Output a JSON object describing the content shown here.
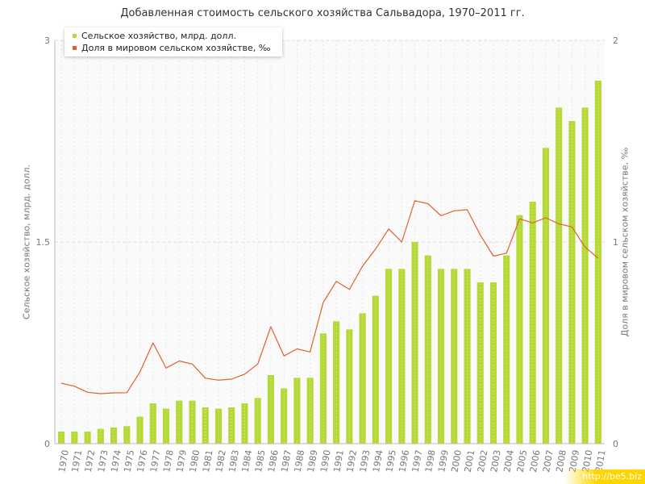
{
  "title": "Добавленная стоимость сельского хозяйства Сальвадора, 1970–2011 гг.",
  "watermark": "http://be5.biz",
  "chart_data": {
    "type": "bar",
    "title": "Добавленная стоимость сельского хозяйства Сальвадора, 1970–2011 гг.",
    "categories": [
      "1970",
      "1971",
      "1972",
      "1973",
      "1974",
      "1975",
      "1976",
      "1977",
      "1978",
      "1979",
      "1980",
      "1981",
      "1982",
      "1983",
      "1984",
      "1985",
      "1986",
      "1987",
      "1988",
      "1989",
      "1990",
      "1991",
      "1992",
      "1993",
      "1994",
      "1995",
      "1996",
      "1997",
      "1998",
      "1999",
      "2000",
      "2001",
      "2002",
      "2003",
      "2004",
      "2005",
      "2006",
      "2007",
      "2008",
      "2009",
      "2010",
      "2011"
    ],
    "series": [
      {
        "name": "Сельское хозяйство, млрд. долл.",
        "type": "bar",
        "axis": "left",
        "color": "#b5d936",
        "values": [
          0.09,
          0.09,
          0.09,
          0.11,
          0.12,
          0.13,
          0.2,
          0.3,
          0.26,
          0.32,
          0.32,
          0.27,
          0.26,
          0.27,
          0.3,
          0.34,
          0.51,
          0.41,
          0.49,
          0.49,
          0.82,
          0.91,
          0.85,
          0.97,
          1.1,
          1.3,
          1.3,
          1.5,
          1.4,
          1.3,
          1.3,
          1.3,
          1.2,
          1.2,
          1.4,
          1.7,
          1.8,
          2.2,
          2.5,
          2.4,
          2.5,
          2.7
        ]
      },
      {
        "name": "Доля в мировом сельском хозяйстве, ‰",
        "type": "line",
        "axis": "right",
        "color": "#e06030",
        "values": [
          0.3,
          0.285,
          0.255,
          0.248,
          0.252,
          0.253,
          0.355,
          0.5,
          0.375,
          0.41,
          0.395,
          0.325,
          0.315,
          0.32,
          0.345,
          0.395,
          0.58,
          0.435,
          0.47,
          0.455,
          0.7,
          0.805,
          0.765,
          0.88,
          0.965,
          1.065,
          1.0,
          1.205,
          1.19,
          1.13,
          1.155,
          1.16,
          1.035,
          0.93,
          0.945,
          1.115,
          1.095,
          1.12,
          1.09,
          1.075,
          0.975,
          0.92
        ]
      }
    ],
    "ylabel": "Сельское хозяйство, млрд. долл.",
    "ylabel_right": "Доля в мировом сельском хозяйстве, ‰",
    "ylim": [
      0,
      3
    ],
    "yticks": [
      "0",
      "1.5",
      "3"
    ],
    "ylim_right": [
      0,
      2
    ],
    "yticks_right": [
      "0",
      "1",
      "2"
    ],
    "grid": true,
    "legend": "top-left"
  }
}
